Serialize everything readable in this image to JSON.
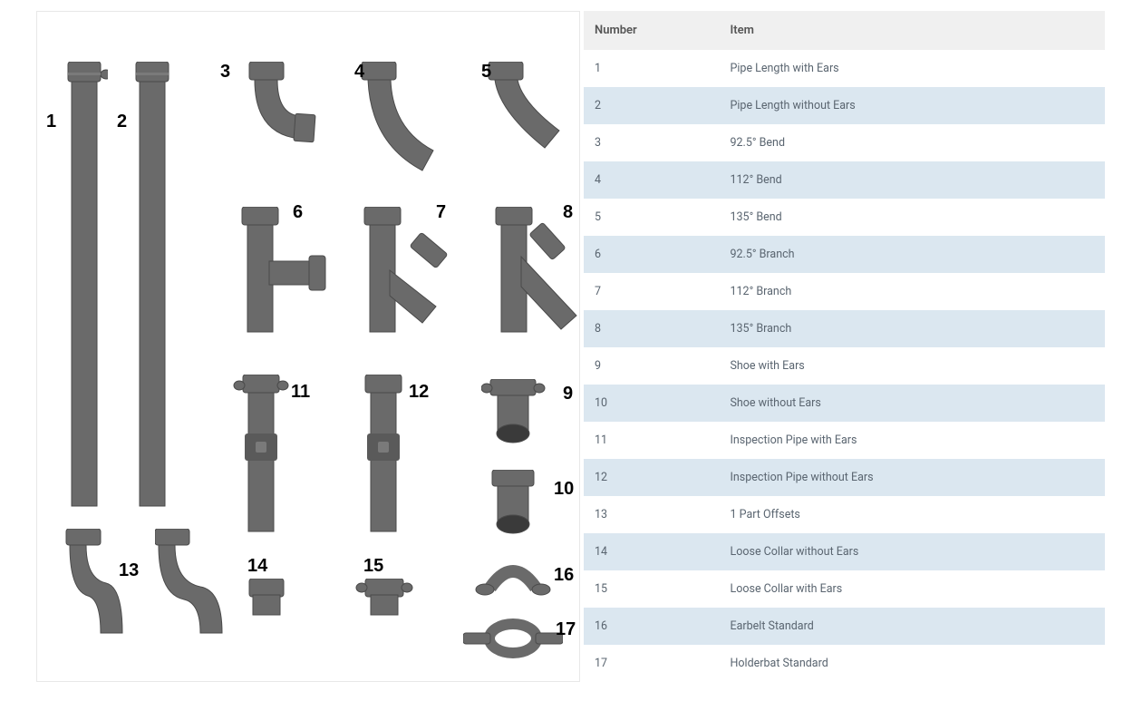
{
  "table": {
    "headers": {
      "number": "Number",
      "item": "Item"
    },
    "rows": [
      {
        "n": "1",
        "item": "Pipe Length with Ears"
      },
      {
        "n": "2",
        "item": "Pipe Length without Ears"
      },
      {
        "n": "3",
        "item": "92.5° Bend"
      },
      {
        "n": "4",
        "item": "112° Bend"
      },
      {
        "n": "5",
        "item": "135° Bend"
      },
      {
        "n": "6",
        "item": "92.5° Branch"
      },
      {
        "n": "7",
        "item": "112° Branch"
      },
      {
        "n": "8",
        "item": "135° Branch"
      },
      {
        "n": "9",
        "item": "Shoe with Ears"
      },
      {
        "n": "10",
        "item": "Shoe without Ears"
      },
      {
        "n": "11",
        "item": "Inspection Pipe with Ears"
      },
      {
        "n": "12",
        "item": "Inspection Pipe without Ears"
      },
      {
        "n": "13",
        "item": "1 Part Offsets"
      },
      {
        "n": "14",
        "item": "Loose Collar without Ears"
      },
      {
        "n": "15",
        "item": "Loose Collar with Ears"
      },
      {
        "n": "16",
        "item": "Earbelt Standard"
      },
      {
        "n": "17",
        "item": "Holderbat Standard"
      }
    ],
    "colors": {
      "header_bg": "#f0f0f0",
      "row_bg": "#ffffff",
      "alt_row_bg": "#dbe7f0",
      "text": "#5a6570"
    }
  },
  "diagram": {
    "pipe_fill": "#6a6a6a",
    "pipe_stroke": "#4a4a4a",
    "labels": {
      "l1": "1",
      "l2": "2",
      "l3": "3",
      "l4": "4",
      "l5": "5",
      "l6": "6",
      "l7": "7",
      "l8": "8",
      "l9": "9",
      "l10": "10",
      "l11": "11",
      "l12": "12",
      "l13": "13",
      "l14": "14",
      "l15": "15",
      "l16": "16",
      "l17": "17"
    }
  }
}
